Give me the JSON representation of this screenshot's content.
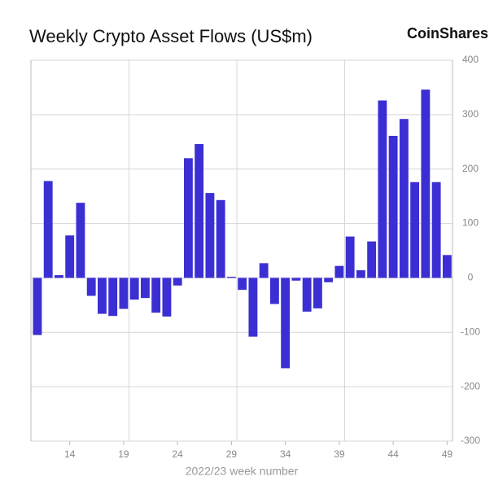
{
  "chart_data": {
    "type": "bar",
    "title": "Weekly Crypto Asset Flows (US$m)",
    "brand": "CoinShares",
    "x_label": "2022/23 week number",
    "x": [
      11,
      12,
      13,
      14,
      15,
      16,
      17,
      18,
      19,
      20,
      21,
      22,
      23,
      24,
      25,
      26,
      27,
      28,
      29,
      30,
      31,
      32,
      33,
      34,
      35,
      36,
      37,
      38,
      39,
      40,
      41,
      42,
      43,
      44,
      45,
      46,
      47,
      48,
      49
    ],
    "values": [
      -105,
      178,
      5,
      78,
      138,
      -33,
      -66,
      -70,
      -57,
      -40,
      -37,
      -64,
      -71,
      -14,
      220,
      246,
      156,
      143,
      2,
      -22,
      -108,
      27,
      -48,
      -166,
      -5,
      -62,
      -56,
      -8,
      22,
      76,
      14,
      67,
      326,
      261,
      292,
      176,
      346,
      176,
      42
    ],
    "color": "#3b2fd4",
    "xlim": [
      10.4,
      49.5
    ],
    "xticks": [
      14,
      19,
      24,
      29,
      34,
      39,
      44,
      49
    ],
    "xgrid": [
      19.5,
      29.5,
      39.5
    ],
    "ylim": [
      -300,
      400
    ],
    "yticks": [
      -300,
      -200,
      -100,
      0,
      100,
      200,
      300,
      400
    ],
    "y_axis_side": "right",
    "grid": true
  }
}
